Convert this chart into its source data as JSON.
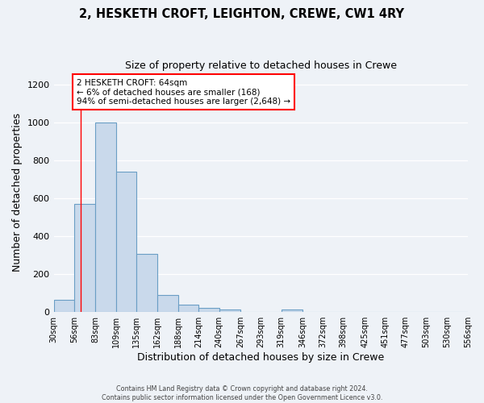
{
  "title": "2, HESKETH CROFT, LEIGHTON, CREWE, CW1 4RY",
  "subtitle": "Size of property relative to detached houses in Crewe",
  "xlabel": "Distribution of detached houses by size in Crewe",
  "ylabel": "Number of detached properties",
  "bin_edges": [
    30,
    56,
    83,
    109,
    135,
    162,
    188,
    214,
    240,
    267,
    293,
    319,
    346,
    372,
    398,
    425,
    451,
    477,
    503,
    530,
    556
  ],
  "bar_heights": [
    65,
    570,
    1000,
    740,
    305,
    90,
    40,
    20,
    12,
    0,
    0,
    12,
    0,
    0,
    0,
    0,
    0,
    0,
    0,
    0
  ],
  "bar_color": "#c9d9eb",
  "bar_edge_color": "#6a9ec5",
  "x_tick_labels": [
    "30sqm",
    "56sqm",
    "83sqm",
    "109sqm",
    "135sqm",
    "162sqm",
    "188sqm",
    "214sqm",
    "240sqm",
    "267sqm",
    "293sqm",
    "319sqm",
    "346sqm",
    "372sqm",
    "398sqm",
    "425sqm",
    "451sqm",
    "477sqm",
    "503sqm",
    "530sqm",
    "556sqm"
  ],
  "ylim": [
    0,
    1260
  ],
  "yticks": [
    0,
    200,
    400,
    600,
    800,
    1000,
    1200
  ],
  "red_line_x": 64,
  "annotation_line1": "2 HESKETH CROFT: 64sqm",
  "annotation_line2": "← 6% of detached houses are smaller (168)",
  "annotation_line3": "94% of semi-detached houses are larger (2,648) →",
  "background_color": "#eef2f7",
  "grid_color": "#ffffff",
  "footer_line1": "Contains HM Land Registry data © Crown copyright and database right 2024.",
  "footer_line2": "Contains public sector information licensed under the Open Government Licence v3.0."
}
